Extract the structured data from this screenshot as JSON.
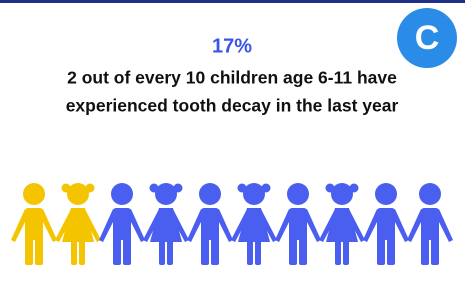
{
  "badge": "C",
  "headline": "17%",
  "text_lines": [
    "2 out of every 10 children age 6-11 have",
    "experienced tooth decay in the last year"
  ]
}
